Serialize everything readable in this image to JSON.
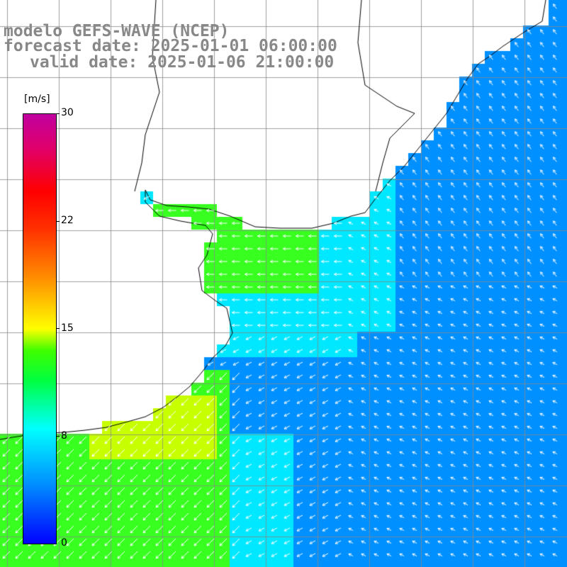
{
  "title": {
    "line1": "modelo GEFS-WAVE (NCEP)",
    "line2": "forecast date: 2025-01-01 06:00:00",
    "line3": "valid date: 2025-01-06 21:00:00"
  },
  "colorbar": {
    "unit": "[m/s]",
    "ticks": [
      {
        "label": "30",
        "value": 30
      },
      {
        "label": "22",
        "value": 22
      },
      {
        "label": "15",
        "value": 15
      },
      {
        "label": "8",
        "value": 8
      },
      {
        "label": "0",
        "value": 0
      }
    ],
    "colors": [
      "#0000ff",
      "#00ffff",
      "#00ff00",
      "#ffff00",
      "#ff0000",
      "#c000a0"
    ]
  },
  "map": {
    "ocean_colors": {
      "weak": "#0090ff",
      "medium": "#00e8ff",
      "strong": "#38ff20",
      "very_strong": "#c8ff00"
    },
    "land_color": "#ffffff",
    "grid_color": "#888888",
    "vector_color": "#ffffff"
  }
}
